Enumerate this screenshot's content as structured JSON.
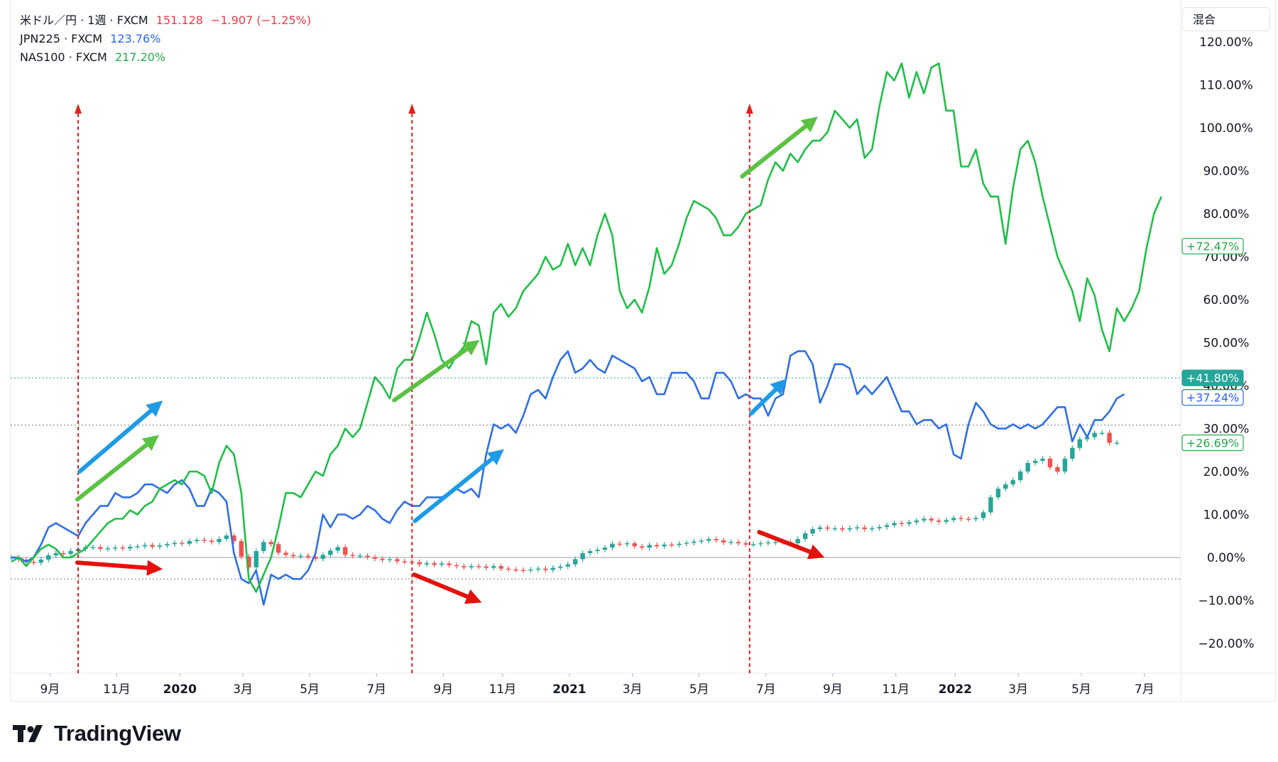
{
  "legend": {
    "items": [
      {
        "symbol": "米ドル／円 · 1週 · FXCM",
        "value": "151.128",
        "change": "−1.907 (−1.25%)",
        "color": "#f23645"
      },
      {
        "symbol": "JPN225 · FXCM",
        "value": "123.76%",
        "change": "",
        "color": "#2962ff"
      },
      {
        "symbol": "NAS100 · FXCM",
        "value": "217.20%",
        "change": "",
        "color": "#22ab4a"
      }
    ]
  },
  "scale_mode_label": "混合",
  "brand": {
    "name": "TradingView"
  },
  "colors": {
    "nas": "#1fbf47",
    "jpn": "#2f6ee5",
    "usd_up": "#26a69a",
    "usd_down": "#ef5350",
    "guide_red": "#e0201a",
    "arrow_red": "#e3120b",
    "arrow_blue": "#1e9be6",
    "arrow_green": "#5bc243"
  },
  "chart_data": {
    "type": "line",
    "title": "",
    "x_start_week": 0,
    "x_axis_ticks": [
      {
        "label": "9月",
        "week": 1,
        "bold": false
      },
      {
        "label": "11月",
        "week": 10,
        "bold": false
      },
      {
        "label": "2020",
        "week": 18.5,
        "bold": true
      },
      {
        "label": "3月",
        "week": 27,
        "bold": false
      },
      {
        "label": "5月",
        "week": 36,
        "bold": false
      },
      {
        "label": "7月",
        "week": 45,
        "bold": false
      },
      {
        "label": "9月",
        "week": 54,
        "bold": false
      },
      {
        "label": "11月",
        "week": 62,
        "bold": false
      },
      {
        "label": "2021",
        "week": 71,
        "bold": true
      },
      {
        "label": "3月",
        "week": 79.5,
        "bold": false
      },
      {
        "label": "5月",
        "week": 88.5,
        "bold": false
      },
      {
        "label": "7月",
        "week": 97.5,
        "bold": false
      },
      {
        "label": "9月",
        "week": 106.5,
        "bold": false
      },
      {
        "label": "11月",
        "week": 115,
        "bold": false
      },
      {
        "label": "2022",
        "week": 123,
        "bold": true
      },
      {
        "label": "3月",
        "week": 131.5,
        "bold": false
      },
      {
        "label": "5月",
        "week": 140,
        "bold": false
      },
      {
        "label": "7月",
        "week": 148.5,
        "bold": false
      }
    ],
    "ylim": [
      -27,
      128
    ],
    "y_ticks": [
      -20,
      -10,
      0,
      10,
      20,
      30,
      40,
      50,
      60,
      70,
      80,
      90,
      100,
      110,
      120
    ],
    "y_tick_suffix": ".00%",
    "zero_line": 0,
    "dotted_lines": [
      41.8,
      30.8,
      -5
    ],
    "last_value_labels": [
      {
        "text": "+72.47%",
        "value": 72.47,
        "style": "outline",
        "color": "#22ab4a"
      },
      {
        "text": "+41.80%",
        "value": 41.8,
        "style": "filled",
        "color": "#26a69a"
      },
      {
        "text": "+37.24%",
        "value": 37.24,
        "style": "outline",
        "color": "#2962ff"
      },
      {
        "text": "+26.69%",
        "value": 26.69,
        "style": "outline",
        "color": "#22ab4a"
      }
    ],
    "series": [
      {
        "name": "NAS100 · FXCM",
        "style": "line",
        "color": "#1fbf47",
        "values": [
          -1,
          0,
          -2,
          0,
          2,
          3,
          2,
          0,
          0,
          1,
          2,
          4,
          6,
          8,
          9,
          9,
          11,
          10,
          12,
          13,
          16,
          17,
          18,
          17,
          20,
          20,
          19,
          15,
          22,
          26,
          24,
          15,
          -5,
          -8,
          -4,
          0,
          7,
          15,
          15,
          14,
          17,
          20,
          19,
          24,
          26,
          30,
          28,
          30,
          36,
          42,
          40,
          37,
          44,
          46,
          46,
          51,
          57,
          52,
          46,
          44,
          47,
          49,
          55,
          54,
          45,
          57,
          59,
          56,
          58,
          62,
          64,
          66,
          70,
          67,
          68,
          73,
          68,
          72,
          68,
          75,
          80,
          75,
          62,
          58,
          60,
          57,
          63,
          72,
          66,
          68,
          73,
          79,
          83,
          82,
          81,
          79,
          75,
          75,
          77,
          80,
          81,
          82,
          88,
          92,
          90,
          94,
          92,
          95,
          97,
          97,
          99,
          104,
          102,
          100,
          102,
          93,
          95,
          105,
          113,
          111,
          115,
          107,
          113,
          108,
          114,
          115,
          104,
          104,
          91,
          91,
          95,
          87,
          84,
          84,
          73,
          86,
          95,
          97,
          92,
          84,
          77,
          70,
          66,
          62,
          55,
          65,
          61,
          53,
          48,
          58,
          55,
          58,
          62,
          72,
          80,
          84
        ]
      },
      {
        "name": "JPN225 · FXCM",
        "style": "line",
        "color": "#2f6ee5",
        "values": [
          0,
          0,
          -1,
          0,
          3,
          7,
          8,
          7,
          6,
          5,
          8,
          10,
          12,
          12,
          15,
          14,
          14,
          15,
          17,
          17,
          16,
          15,
          17,
          18,
          16,
          12,
          12,
          16,
          15,
          13,
          1,
          -5,
          -6,
          -3,
          -11,
          -4,
          -5,
          -4,
          -5,
          -5,
          -3,
          1,
          10,
          7,
          10,
          10,
          9,
          10,
          12,
          11,
          9,
          8,
          11,
          13,
          12,
          12,
          14,
          14,
          14,
          15,
          16,
          15,
          16,
          14,
          24,
          31,
          30,
          31,
          29,
          33,
          38,
          39,
          37,
          42,
          46,
          48,
          43,
          44,
          46,
          44,
          43,
          47,
          46,
          45,
          44,
          41,
          42,
          38,
          38,
          43,
          43,
          43,
          41,
          37,
          37,
          43,
          43,
          41,
          37,
          38,
          37,
          37,
          33,
          37,
          38,
          47,
          48,
          48,
          45,
          36,
          40,
          45,
          45,
          44,
          38,
          40,
          38,
          40,
          42,
          38,
          34,
          34,
          31,
          32,
          32,
          30,
          31,
          24,
          23,
          31,
          36,
          34,
          31,
          30,
          30,
          31,
          30,
          31,
          30,
          31,
          33,
          35,
          35,
          27,
          31,
          28,
          32,
          32,
          34,
          37,
          38
        ]
      },
      {
        "name": "米ドル／円 · 1週 · FXCM",
        "style": "candles",
        "color_up": "#26a69a",
        "color_down": "#ef5350",
        "values": [
          0,
          -0.5,
          -1,
          -1.2,
          -0.5,
          0.5,
          1,
          0.8,
          1.5,
          2,
          2.4,
          2.4,
          2,
          2.1,
          2.3,
          2.1,
          2.5,
          2.6,
          2.9,
          2.5,
          2.8,
          3.1,
          3.4,
          3.2,
          3.8,
          4.1,
          3.9,
          3.6,
          4.3,
          5.1,
          3.8,
          0.2,
          -2.3,
          1.5,
          3.6,
          3.1,
          1.1,
          0.6,
          0.3,
          0.4,
          0.1,
          -0.3,
          0.6,
          1.6,
          2.4,
          0.6,
          0.4,
          0.4,
          0.1,
          -0.3,
          -0.6,
          -0.4,
          -0.9,
          -1.0,
          -1.1,
          -1.6,
          -1.3,
          -1.7,
          -1.4,
          -1.8,
          -2.0,
          -2.3,
          -2.0,
          -2.1,
          -2.4,
          -2.0,
          -2.6,
          -2.8,
          -2.9,
          -3.0,
          -2.8,
          -2.6,
          -2.9,
          -2.4,
          -2.1,
          -1.6,
          -0.4,
          1.0,
          1.5,
          1.8,
          2.3,
          3.2,
          3.1,
          3.3,
          2.6,
          2.3,
          2.9,
          2.6,
          3.0,
          2.9,
          3.2,
          3.4,
          3.7,
          3.9,
          4.3,
          4.0,
          3.5,
          3.6,
          3.3,
          3.0,
          3.1,
          3.3,
          3.5,
          3.6,
          3.6,
          3.3,
          4.3,
          5.6,
          6.6,
          7.0,
          6.7,
          6.8,
          6.5,
          6.8,
          7.0,
          6.6,
          6.8,
          7.1,
          7.5,
          8.0,
          7.8,
          8.2,
          8.6,
          9.0,
          8.6,
          8.3,
          8.7,
          9.2,
          9.0,
          8.9,
          9.2,
          10.5,
          14.0,
          16.0,
          17.0,
          18.0,
          20.0,
          22.0,
          22.5,
          23.0,
          21.0,
          20.0,
          23.0,
          25.5,
          27.5,
          28.0,
          29.0,
          29.0,
          26.7,
          26.7
        ]
      }
    ]
  }
}
